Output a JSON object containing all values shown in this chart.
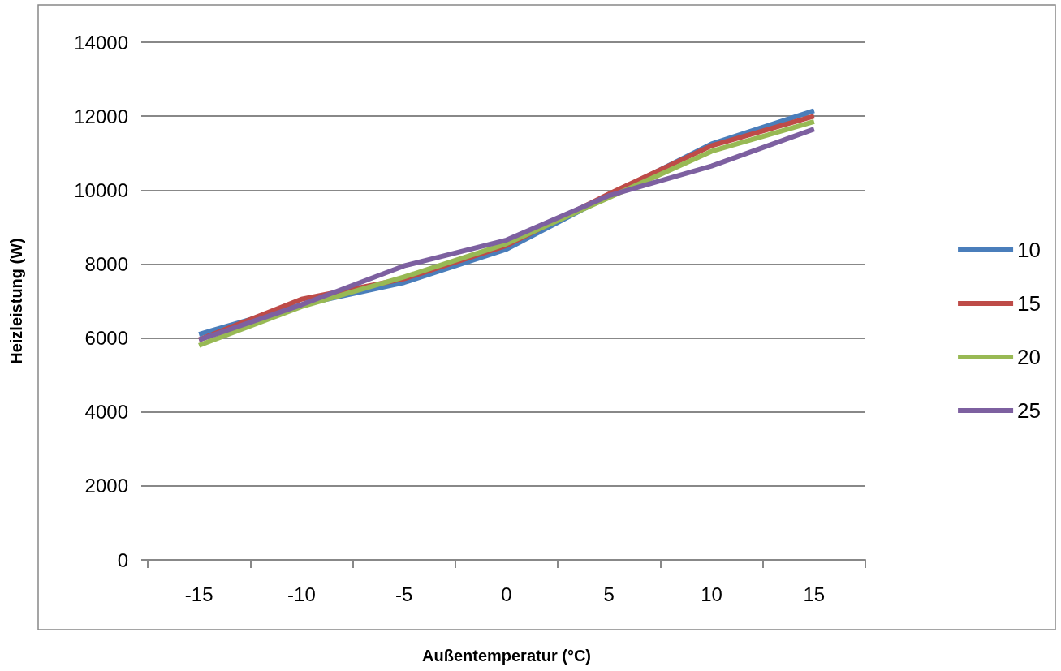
{
  "chart_data": {
    "type": "line",
    "xlabel": "Außentemperatur (°C)",
    "ylabel": "Heizleistung (W)",
    "categories": [
      "-15",
      "-10",
      "-5",
      "0",
      "5",
      "10",
      "15"
    ],
    "series": [
      {
        "name": "10",
        "color": "#4a7ebb",
        "values": [
          6100,
          6900,
          7500,
          8400,
          9850,
          11250,
          12150
        ]
      },
      {
        "name": "15",
        "color": "#be4b48",
        "values": [
          5950,
          7050,
          7600,
          8500,
          9900,
          11200,
          12000
        ]
      },
      {
        "name": "20",
        "color": "#98b954",
        "values": [
          5800,
          6850,
          7650,
          8550,
          9800,
          11050,
          11850
        ]
      },
      {
        "name": "25",
        "color": "#7d60a0",
        "values": [
          5950,
          6900,
          7950,
          8650,
          9850,
          10650,
          11650
        ]
      }
    ],
    "ylim": [
      0,
      14000
    ],
    "yticks": [
      0,
      2000,
      4000,
      6000,
      8000,
      10000,
      12000,
      14000
    ],
    "grid": "y",
    "legend": "right",
    "marker": "none",
    "line_style": "solid"
  }
}
